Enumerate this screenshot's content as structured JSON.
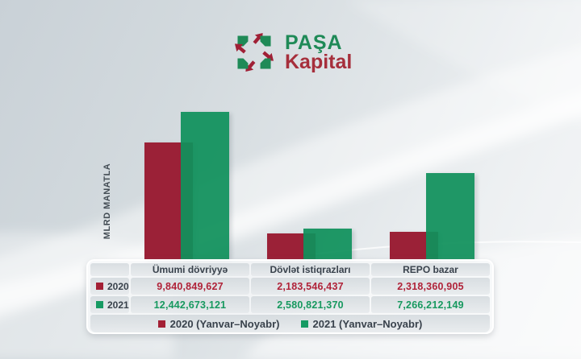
{
  "brand": {
    "name_top": "PAŞA",
    "name_bottom": "Kapital",
    "green": "#1f8a57",
    "red": "#a62f3c"
  },
  "axis": {
    "y_label": "MLRD MANATLA"
  },
  "chart_data": {
    "type": "bar",
    "categories": [
      "Ümumi dövriyyə",
      "Dövlət istiqrazları",
      "REPO bazar"
    ],
    "series": [
      {
        "name": "2020 (Yanvar–Noyabr)",
        "color": "#9b2137",
        "values": [
          9840849627,
          2183546437,
          2318360905
        ]
      },
      {
        "name": "2021 (Yanvar–Noyabr)",
        "color": "#10915c",
        "values": [
          12442673121,
          2580821370,
          7266212149
        ]
      }
    ],
    "ylabel": "MLRD MANATLA",
    "ymax": 12442673121,
    "grid": false,
    "legend_position": "bottom"
  },
  "table": {
    "headers": [
      "",
      "Ümumi dövriyyə",
      "Dövlət istiqrazları",
      "REPO bazar"
    ],
    "rows": [
      {
        "label": "2020",
        "color": "#a32035",
        "values": [
          "9,840,849,627",
          "2,183,546,437",
          "2,318,360,905"
        ]
      },
      {
        "label": "2021",
        "color": "#169a63",
        "values": [
          "12,442,673,121",
          "2,580,821,370",
          "7,266,212,149"
        ]
      }
    ]
  },
  "legend": {
    "items": [
      {
        "label": "2020 (Yanvar–Noyabr)",
        "color": "#a32035"
      },
      {
        "label": "2021 (Yanvar–Noyabr)",
        "color": "#169a63"
      }
    ]
  }
}
